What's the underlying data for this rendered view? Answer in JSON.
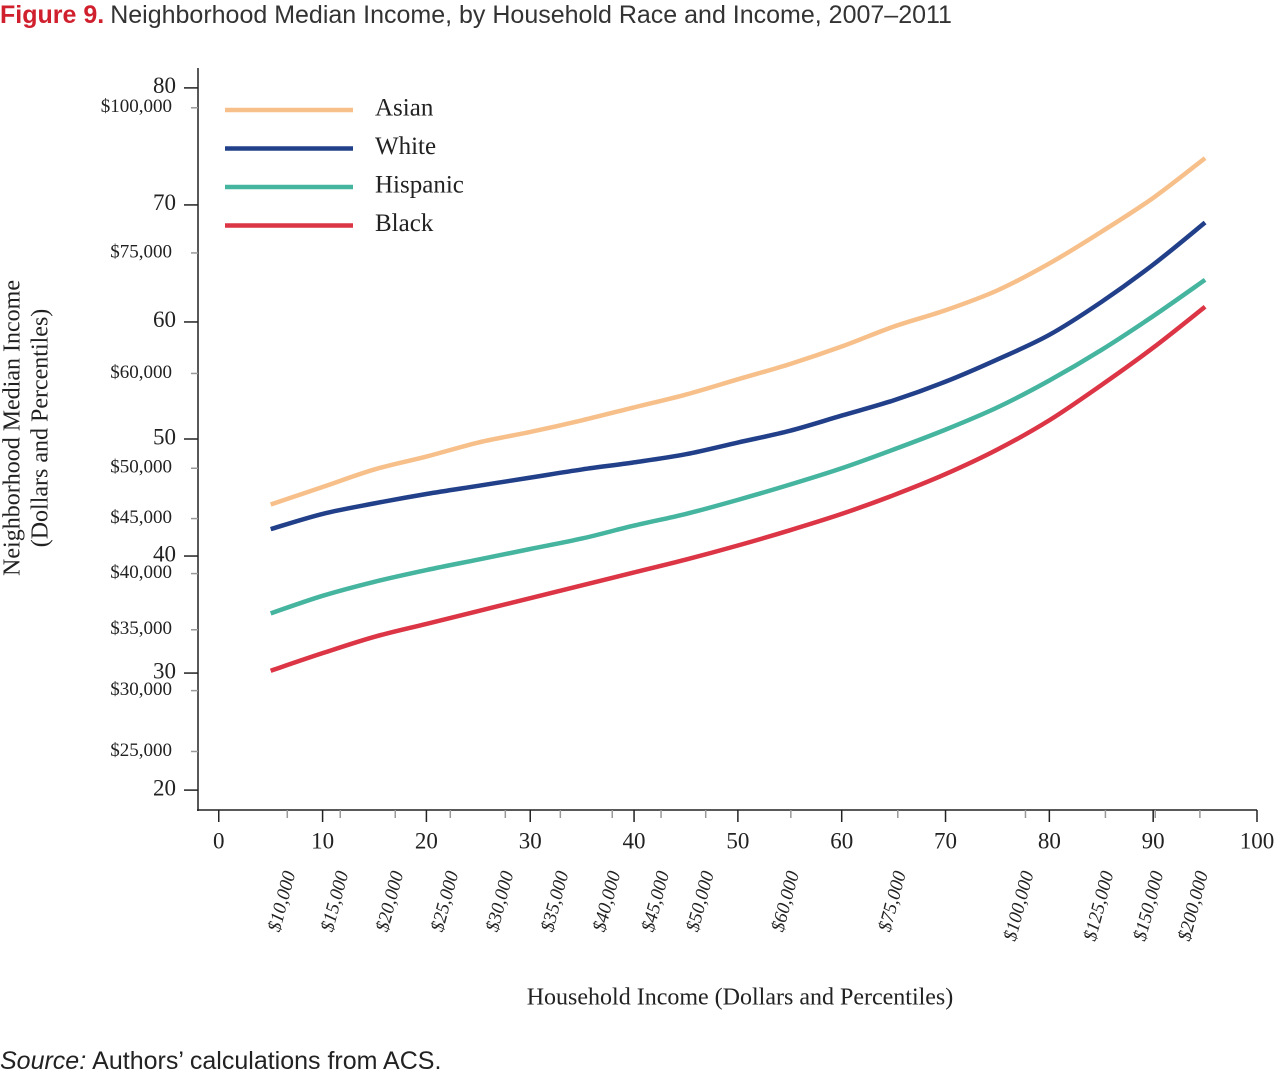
{
  "chart_data": {
    "type": "line",
    "title_label": "Figure 9.",
    "title": "Neighborhood Median Income, by Household Race and Income, 2007–2011",
    "ylabel": [
      "Neighborhood Median Income",
      "(Dollars and Percentiles)"
    ],
    "xlabel": "Household Income (Dollars and Percentiles)",
    "source_label": "Source:",
    "source": "Authors’ calculations from ACS.",
    "x": [
      5,
      10,
      15,
      20,
      25,
      30,
      35,
      40,
      45,
      50,
      55,
      60,
      65,
      70,
      75,
      80,
      85,
      90,
      95
    ],
    "series": [
      {
        "name": "Asian",
        "color": "#f7c08a",
        "values": [
          44.4,
          45.9,
          47.4,
          48.5,
          49.7,
          50.6,
          51.6,
          52.7,
          53.8,
          55.1,
          56.4,
          57.9,
          59.6,
          61.0,
          62.7,
          65.0,
          67.7,
          70.6,
          74.0
        ]
      },
      {
        "name": "White",
        "color": "#22408a",
        "values": [
          42.3,
          43.6,
          44.5,
          45.3,
          46.0,
          46.7,
          47.4,
          48.0,
          48.7,
          49.7,
          50.7,
          52.0,
          53.3,
          54.9,
          56.8,
          58.9,
          61.7,
          64.9,
          68.5
        ]
      },
      {
        "name": "Hispanic",
        "color": "#45b5a0",
        "values": [
          35.1,
          36.6,
          37.8,
          38.8,
          39.7,
          40.6,
          41.5,
          42.6,
          43.6,
          44.8,
          46.1,
          47.5,
          49.1,
          50.8,
          52.7,
          55.0,
          57.6,
          60.5,
          63.6
        ]
      },
      {
        "name": "Black",
        "color": "#dc3545",
        "values": [
          30.2,
          31.7,
          33.1,
          34.2,
          35.3,
          36.4,
          37.5,
          38.6,
          39.7,
          40.9,
          42.2,
          43.6,
          45.2,
          47.0,
          49.1,
          51.6,
          54.6,
          57.8,
          61.3
        ]
      }
    ],
    "xlim": [
      -2,
      100
    ],
    "ylim": [
      18.3,
      81.7
    ],
    "xticks": [
      0,
      10,
      20,
      30,
      40,
      50,
      60,
      70,
      80,
      90,
      100
    ],
    "yticks": [
      20,
      30,
      40,
      50,
      60,
      70,
      80
    ],
    "x_dollar_ticks": {
      "labels": [
        "$10,000",
        "$15,000",
        "$20,000",
        "$25,000",
        "$30,000",
        "$35,000",
        "$40,000",
        "$45,000",
        "$50,000",
        "$60,000",
        "$75,000",
        "$100,000",
        "$125,000",
        "$150,000",
        "$200,000"
      ],
      "positions": [
        6.6,
        11.7,
        17.0,
        22.3,
        27.6,
        32.9,
        37.9,
        42.6,
        46.9,
        55.1,
        65.4,
        77.7,
        85.4,
        90.2,
        94.5
      ]
    },
    "y_dollar_ticks": {
      "labels": [
        "$100,000",
        "$75,000",
        "$60,000",
        "$50,000",
        "$45,000",
        "$40,000",
        "$35,000",
        "$30,000",
        "$25,000"
      ],
      "positions": [
        78.3,
        65.9,
        55.6,
        47.5,
        43.2,
        38.5,
        33.7,
        28.5,
        23.3
      ]
    },
    "legend": "upper left",
    "grid": false
  }
}
